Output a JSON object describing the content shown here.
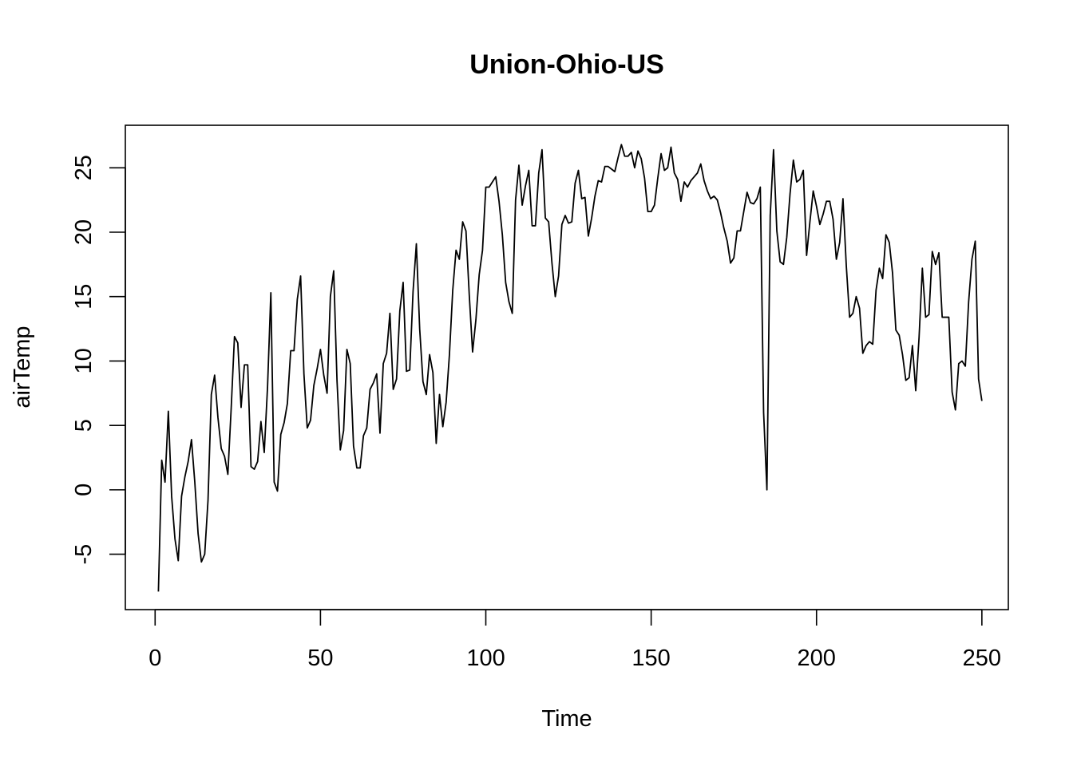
{
  "chart_data": {
    "type": "line",
    "title": "Union-Ohio-US",
    "xlabel": "Time",
    "ylabel": "airTemp",
    "xlim": [
      -9,
      258
    ],
    "ylim": [
      -9.3,
      28.3
    ],
    "xticks": [
      0,
      50,
      100,
      150,
      200,
      250
    ],
    "yticks": [
      -5,
      0,
      5,
      10,
      15,
      20,
      25
    ],
    "grid": false,
    "legend": "none",
    "line_color": "#000000",
    "series": [
      {
        "values": [
          -7.9,
          2.3,
          0.6,
          6.1,
          -0.5,
          -3.8,
          -5.5,
          -0.5,
          1.0,
          2.2,
          3.9,
          0.6,
          -3.4,
          -5.6,
          -5.0,
          -0.8,
          7.4,
          8.9,
          5.6,
          3.2,
          2.6,
          1.2,
          6.3,
          11.9,
          11.4,
          6.4,
          9.7,
          9.7,
          1.8,
          1.6,
          2.2,
          5.3,
          2.9,
          8.0,
          15.3,
          0.6,
          -0.1,
          4.3,
          5.2,
          6.7,
          10.8,
          10.8,
          14.8,
          16.6,
          9.0,
          4.8,
          5.4,
          8.1,
          9.4,
          10.9,
          8.9,
          7.5,
          15.0,
          17.0,
          8.5,
          3.1,
          4.6,
          10.9,
          9.8,
          3.4,
          1.7,
          1.7,
          4.2,
          4.8,
          7.8,
          8.3,
          9.0,
          4.4,
          9.8,
          10.6,
          13.7,
          7.8,
          8.6,
          13.9,
          16.1,
          9.2,
          9.3,
          15.4,
          19.1,
          12.5,
          8.4,
          7.4,
          10.5,
          9.1,
          3.6,
          7.4,
          4.9,
          6.8,
          10.5,
          15.5,
          18.6,
          17.9,
          20.8,
          20.1,
          15.1,
          10.7,
          13.2,
          16.7,
          18.6,
          23.5,
          23.5,
          23.9,
          24.3,
          22.4,
          19.8,
          16.1,
          14.6,
          13.7,
          22.5,
          25.2,
          22.1,
          23.6,
          24.8,
          20.5,
          20.5,
          24.6,
          26.4,
          21.1,
          20.8,
          17.6,
          15.0,
          16.6,
          20.6,
          21.3,
          20.7,
          20.8,
          23.8,
          24.8,
          22.6,
          22.7,
          19.7,
          21.1,
          22.8,
          24.0,
          23.9,
          25.1,
          25.1,
          24.9,
          24.7,
          25.8,
          26.8,
          25.9,
          25.9,
          26.2,
          25.0,
          26.3,
          25.7,
          24.2,
          21.6,
          21.6,
          22.1,
          24.2,
          26.1,
          24.8,
          25.0,
          26.6,
          24.6,
          24.1,
          22.4,
          23.9,
          23.5,
          24.0,
          24.3,
          24.6,
          25.3,
          24.0,
          23.2,
          22.6,
          22.8,
          22.5,
          21.5,
          20.3,
          19.3,
          17.6,
          18.0,
          20.1,
          20.1,
          21.6,
          23.1,
          22.3,
          22.2,
          22.6,
          23.5,
          6.0,
          0.0,
          21.3,
          26.4,
          20.1,
          17.7,
          17.5,
          19.6,
          23.0,
          25.6,
          23.9,
          24.1,
          24.8,
          18.2,
          20.8,
          23.2,
          22.0,
          20.6,
          21.4,
          22.4,
          22.4,
          21.0,
          17.9,
          19.2,
          22.6,
          17.4,
          13.4,
          13.7,
          15.0,
          14.1,
          10.6,
          11.2,
          11.5,
          11.3,
          15.5,
          17.2,
          16.4,
          19.8,
          19.2,
          16.8,
          12.4,
          12.0,
          10.5,
          8.5,
          8.7,
          11.2,
          7.7,
          11.8,
          17.2,
          13.4,
          13.6,
          18.5,
          17.5,
          18.4,
          13.4,
          13.4,
          13.4,
          7.6,
          6.2,
          9.8,
          10.0,
          9.6,
          14.6,
          17.9,
          19.3,
          8.6,
          6.9
        ]
      }
    ]
  }
}
